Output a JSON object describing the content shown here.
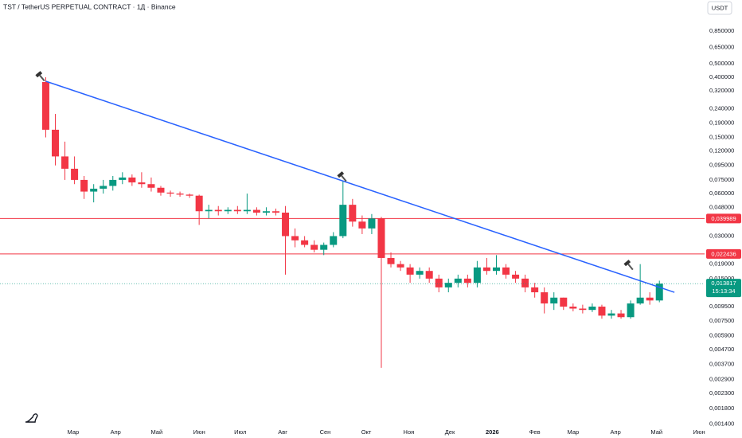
{
  "chart_data": {
    "type": "candlestick",
    "title": "TST / TetherUS PERPETUAL CONTRACT · 1Д · Binance",
    "currency": "USDT",
    "log_scale": true,
    "grid": false,
    "up_color": "#089981",
    "down_color": "#f23645",
    "xlim": [
      -24.4,
      490
    ],
    "xticks": [
      {
        "value": 29,
        "label": "Мар"
      },
      {
        "value": 60,
        "label": "Апр"
      },
      {
        "value": 90,
        "label": "Май"
      },
      {
        "value": 121,
        "label": "Июн"
      },
      {
        "value": 151,
        "label": "Июл"
      },
      {
        "value": 182,
        "label": "Авг"
      },
      {
        "value": 213,
        "label": "Сен"
      },
      {
        "value": 243,
        "label": "Окт"
      },
      {
        "value": 274,
        "label": "Ноя"
      },
      {
        "value": 304,
        "label": "Дек"
      },
      {
        "value": 335,
        "label": "2026"
      },
      {
        "value": 366,
        "label": "Фев"
      },
      {
        "value": 394,
        "label": "Мар"
      },
      {
        "value": 425,
        "label": "Апр"
      },
      {
        "value": 455,
        "label": "Май"
      },
      {
        "value": 486,
        "label": "Июн"
      }
    ],
    "ylim": [
      0.00132,
      1.41
    ],
    "yticks": [
      {
        "value": 0.85,
        "label": "0,850000"
      },
      {
        "value": 0.65,
        "label": "0,650000"
      },
      {
        "value": 0.5,
        "label": "0,500000"
      },
      {
        "value": 0.4,
        "label": "0,400000"
      },
      {
        "value": 0.32,
        "label": "0,320000"
      },
      {
        "value": 0.24,
        "label": "0,240000"
      },
      {
        "value": 0.19,
        "label": "0,190000"
      },
      {
        "value": 0.15,
        "label": "0,150000"
      },
      {
        "value": 0.12,
        "label": "0,120000"
      },
      {
        "value": 0.095,
        "label": "0,095000"
      },
      {
        "value": 0.075,
        "label": "0,075000"
      },
      {
        "value": 0.06,
        "label": "0,060000"
      },
      {
        "value": 0.048,
        "label": "0,048000"
      },
      {
        "value": 0.03,
        "label": "0,030000"
      },
      {
        "value": 0.019,
        "label": "0,019000"
      },
      {
        "value": 0.015,
        "label": "0,015000"
      },
      {
        "value": 0.0095,
        "label": "0,009500"
      },
      {
        "value": 0.0075,
        "label": "0,007500"
      },
      {
        "value": 0.0059,
        "label": "0,005900"
      },
      {
        "value": 0.0047,
        "label": "0,004700"
      },
      {
        "value": 0.0037,
        "label": "0,003700"
      },
      {
        "value": 0.0029,
        "label": "0,002900"
      },
      {
        "value": 0.0023,
        "label": "0,002300"
      },
      {
        "value": 0.0018,
        "label": "0,001800"
      },
      {
        "value": 0.0014,
        "label": "0,001400"
      }
    ],
    "x": [
      9,
      16,
      23,
      30,
      37,
      44,
      51,
      58,
      65,
      72,
      79,
      86,
      93,
      100,
      107,
      114,
      121,
      128,
      135,
      142,
      149,
      156,
      163,
      170,
      177,
      184,
      191,
      198,
      205,
      212,
      219,
      226,
      233,
      240,
      247,
      254,
      261,
      268,
      275,
      282,
      289,
      296,
      303,
      310,
      317,
      324,
      331,
      338,
      345,
      352,
      359,
      366,
      373,
      380,
      387,
      394,
      401,
      408,
      415,
      422,
      429,
      436,
      443,
      450,
      457
    ],
    "open": [
      0.37,
      0.17,
      0.11,
      0.09,
      0.075,
      0.062,
      0.065,
      0.068,
      0.075,
      0.078,
      0.072,
      0.07,
      0.066,
      0.061,
      0.06,
      0.059,
      0.058,
      0.045,
      0.046,
      0.045,
      0.046,
      0.045,
      0.046,
      0.044,
      0.045,
      0.044,
      0.03,
      0.028,
      0.026,
      0.024,
      0.026,
      0.03,
      0.05,
      0.038,
      0.034,
      0.04,
      0.021,
      0.019,
      0.018,
      0.016,
      0.017,
      0.015,
      0.013,
      0.014,
      0.015,
      0.014,
      0.018,
      0.017,
      0.018,
      0.016,
      0.015,
      0.013,
      0.012,
      0.01,
      0.011,
      0.0095,
      0.0092,
      0.009,
      0.0095,
      0.0082,
      0.0085,
      0.008,
      0.01,
      0.011,
      0.0105
    ],
    "high": [
      0.4,
      0.22,
      0.14,
      0.11,
      0.08,
      0.07,
      0.075,
      0.08,
      0.085,
      0.082,
      0.085,
      0.078,
      0.068,
      0.063,
      0.062,
      0.06,
      0.059,
      0.05,
      0.049,
      0.048,
      0.049,
      0.06,
      0.048,
      0.048,
      0.047,
      0.049,
      0.034,
      0.03,
      0.028,
      0.027,
      0.032,
      0.074,
      0.055,
      0.042,
      0.043,
      0.041,
      0.023,
      0.02,
      0.019,
      0.018,
      0.018,
      0.016,
      0.015,
      0.016,
      0.016,
      0.02,
      0.021,
      0.022,
      0.019,
      0.017,
      0.016,
      0.014,
      0.013,
      0.012,
      0.011,
      0.01,
      0.0098,
      0.01,
      0.0098,
      0.009,
      0.009,
      0.0105,
      0.019,
      0.012,
      0.0145
    ],
    "low": [
      0.15,
      0.095,
      0.075,
      0.07,
      0.055,
      0.052,
      0.06,
      0.063,
      0.07,
      0.068,
      0.066,
      0.062,
      0.058,
      0.057,
      0.057,
      0.056,
      0.036,
      0.04,
      0.042,
      0.043,
      0.043,
      0.043,
      0.042,
      0.042,
      0.042,
      0.016,
      0.025,
      0.025,
      0.023,
      0.022,
      0.025,
      0.029,
      0.035,
      0.031,
      0.031,
      0.0035,
      0.018,
      0.017,
      0.014,
      0.015,
      0.014,
      0.012,
      0.012,
      0.013,
      0.013,
      0.013,
      0.016,
      0.016,
      0.015,
      0.014,
      0.012,
      0.011,
      0.0085,
      0.009,
      0.009,
      0.0088,
      0.0085,
      0.0087,
      0.0078,
      0.0078,
      0.0078,
      0.0078,
      0.0098,
      0.0098,
      0.0102
    ],
    "close": [
      0.17,
      0.11,
      0.09,
      0.075,
      0.062,
      0.065,
      0.068,
      0.075,
      0.078,
      0.072,
      0.07,
      0.066,
      0.061,
      0.06,
      0.059,
      0.058,
      0.045,
      0.046,
      0.045,
      0.046,
      0.045,
      0.046,
      0.044,
      0.045,
      0.044,
      0.03,
      0.028,
      0.026,
      0.024,
      0.026,
      0.03,
      0.05,
      0.038,
      0.034,
      0.04,
      0.021,
      0.019,
      0.018,
      0.016,
      0.017,
      0.015,
      0.013,
      0.014,
      0.015,
      0.014,
      0.018,
      0.017,
      0.018,
      0.016,
      0.015,
      0.013,
      0.012,
      0.01,
      0.011,
      0.0095,
      0.0092,
      0.009,
      0.0095,
      0.0082,
      0.0085,
      0.008,
      0.01,
      0.011,
      0.0105,
      0.013817
    ],
    "levels": [
      {
        "value": 0.039989,
        "label": "0,039989",
        "color": "#f23645"
      },
      {
        "value": 0.022436,
        "label": "0,022436",
        "color": "#f23645"
      }
    ],
    "last_price": {
      "value": 0.013817,
      "label": "0,013817",
      "countdown": "15:13:34",
      "color": "#089981"
    },
    "trendline": {
      "x": [
        9,
        468
      ],
      "y": [
        0.375,
        0.012
      ],
      "color": "#2962ff"
    }
  }
}
